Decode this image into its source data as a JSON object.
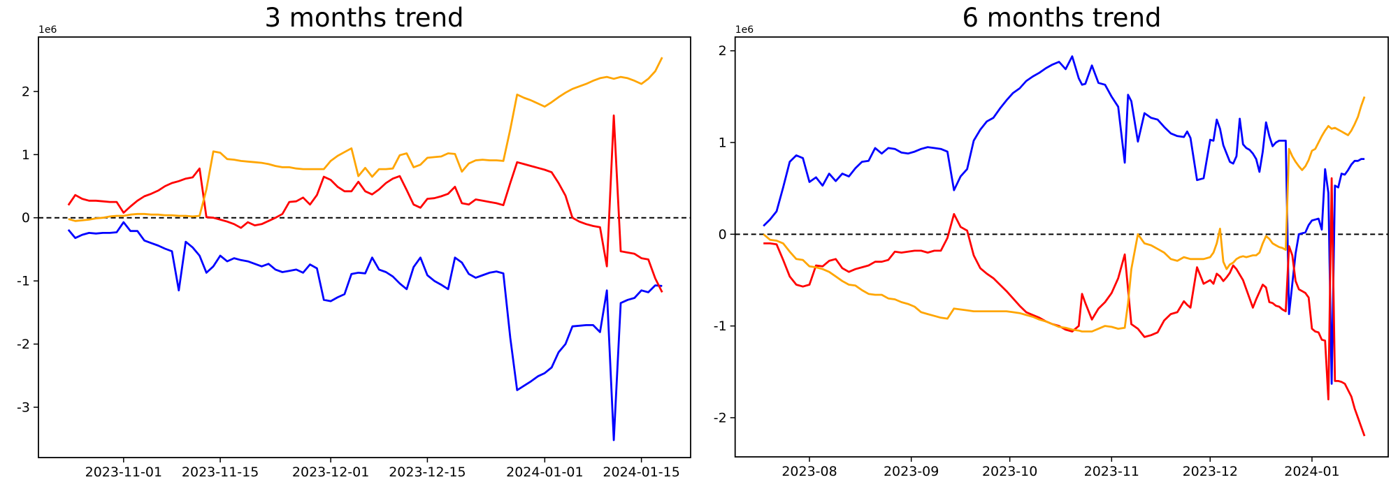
{
  "page": {
    "background": "#ffffff"
  },
  "chart_data": [
    {
      "type": "line",
      "title": "3 months trend",
      "axis_offset_label": "1e6",
      "unit_multiplier": 1000000,
      "grid": false,
      "legend": null,
      "zero_line": {
        "style": "dashed",
        "color": "#000000"
      },
      "xlim": [
        "2023-10-19T16:00:00",
        "2024-01-22T03:00:00"
      ],
      "ylim": [
        -3.797,
        2.862
      ],
      "yticks": [
        2,
        1,
        0,
        -1,
        -2,
        -3
      ],
      "xticks": [
        {
          "date": "2023-11-01",
          "label": "2023-11-01"
        },
        {
          "date": "2023-11-15",
          "label": "2023-11-15"
        },
        {
          "date": "2023-12-01",
          "label": "2023-12-01"
        },
        {
          "date": "2023-12-15",
          "label": "2023-12-15"
        },
        {
          "date": "2024-01-01",
          "label": "2024-01-01"
        },
        {
          "date": "2024-01-15",
          "label": "2024-01-15"
        }
      ],
      "x": {
        "start": "2023-10-24",
        "step_days": 1,
        "count": 87
      },
      "series": [
        {
          "name": "blue",
          "color": "#0000ff",
          "values": [
            -0.19,
            -0.32,
            -0.27,
            -0.24,
            -0.25,
            -0.24,
            -0.24,
            -0.23,
            -0.07,
            -0.21,
            -0.21,
            -0.36,
            -0.4,
            -0.44,
            -0.49,
            -0.53,
            -1.15,
            -0.38,
            -0.47,
            -0.6,
            -0.87,
            -0.77,
            -0.6,
            -0.69,
            -0.64,
            -0.67,
            -0.69,
            -0.73,
            -0.77,
            -0.73,
            -0.82,
            -0.86,
            -0.84,
            -0.82,
            -0.87,
            -0.74,
            -0.8,
            -1.3,
            -1.32,
            -1.26,
            -1.21,
            -0.89,
            -0.87,
            -0.88,
            -0.63,
            -0.82,
            -0.86,
            -0.93,
            -1.04,
            -1.13,
            -0.78,
            -0.63,
            -0.91,
            -1.0,
            -1.06,
            -1.13,
            -0.63,
            -0.71,
            -0.89,
            -0.95,
            -0.91,
            -0.87,
            -0.85,
            -0.88,
            -1.9,
            -2.73,
            -2.66,
            -2.59,
            -2.51,
            -2.46,
            -2.37,
            -2.13,
            -2.0,
            -1.72,
            -1.71,
            -1.7,
            -1.7,
            -1.81,
            -1.15,
            -3.52,
            -1.35,
            -1.3,
            -1.27,
            -1.15,
            -1.18,
            -1.07,
            -1.08
          ]
        },
        {
          "name": "red",
          "color": "#ff0000",
          "values": [
            0.2,
            0.36,
            0.3,
            0.27,
            0.27,
            0.26,
            0.25,
            0.25,
            0.08,
            0.18,
            0.27,
            0.34,
            0.38,
            0.43,
            0.5,
            0.55,
            0.58,
            0.62,
            0.64,
            0.78,
            0.01,
            0.0,
            -0.03,
            -0.06,
            -0.1,
            -0.16,
            -0.07,
            -0.12,
            -0.1,
            -0.05,
            0.0,
            0.06,
            0.25,
            0.26,
            0.32,
            0.21,
            0.36,
            0.65,
            0.6,
            0.49,
            0.42,
            0.42,
            0.57,
            0.42,
            0.37,
            0.45,
            0.55,
            0.62,
            0.66,
            0.44,
            0.21,
            0.16,
            0.3,
            0.31,
            0.34,
            0.38,
            0.49,
            0.23,
            0.21,
            0.29,
            0.27,
            0.25,
            0.23,
            0.2,
            0.55,
            0.88,
            0.85,
            0.82,
            0.79,
            0.76,
            0.72,
            0.55,
            0.35,
            0.0,
            -0.06,
            -0.1,
            -0.13,
            -0.15,
            -0.77,
            1.62,
            -0.53,
            -0.55,
            -0.57,
            -0.64,
            -0.66,
            -0.96,
            -1.18
          ]
        },
        {
          "name": "orange",
          "color": "#ffa500",
          "values": [
            -0.02,
            -0.05,
            -0.04,
            -0.03,
            -0.01,
            0.0,
            0.02,
            0.03,
            0.03,
            0.05,
            0.06,
            0.06,
            0.05,
            0.05,
            0.04,
            0.04,
            0.03,
            0.03,
            0.02,
            0.03,
            0.45,
            1.05,
            1.03,
            0.93,
            0.92,
            0.9,
            0.89,
            0.88,
            0.87,
            0.85,
            0.82,
            0.8,
            0.8,
            0.78,
            0.77,
            0.77,
            0.77,
            0.77,
            0.9,
            0.98,
            1.04,
            1.1,
            0.66,
            0.79,
            0.65,
            0.77,
            0.77,
            0.78,
            0.99,
            1.02,
            0.8,
            0.84,
            0.95,
            0.96,
            0.97,
            1.02,
            1.01,
            0.73,
            0.86,
            0.91,
            0.92,
            0.91,
            0.91,
            0.9,
            1.4,
            1.95,
            1.9,
            1.86,
            1.81,
            1.76,
            1.83,
            1.91,
            1.98,
            2.04,
            2.08,
            2.12,
            2.17,
            2.21,
            2.23,
            2.2,
            2.23,
            2.21,
            2.17,
            2.12,
            2.2,
            2.32,
            2.54
          ]
        }
      ]
    },
    {
      "type": "line",
      "title": "6 months trend",
      "axis_offset_label": "1e6",
      "unit_multiplier": 1000000,
      "grid": false,
      "legend": null,
      "zero_line": {
        "style": "dashed",
        "color": "#000000"
      },
      "xlim": [
        "2023-07-09T09:00:00",
        "2024-01-24T05:00:00"
      ],
      "ylim": [
        -2.427,
        2.15
      ],
      "yticks": [
        2,
        1,
        0,
        -1,
        -2
      ],
      "xticks": [
        {
          "date": "2023-08-01",
          "label": "2023-08"
        },
        {
          "date": "2023-09-01",
          "label": "2023-09"
        },
        {
          "date": "2023-10-01",
          "label": "2023-10"
        },
        {
          "date": "2023-11-01",
          "label": "2023-11"
        },
        {
          "date": "2023-12-01",
          "label": "2023-12"
        },
        {
          "date": "2024-01-01",
          "label": "2024-01"
        }
      ],
      "x": {
        "dates": [
          "2023-07-18",
          "2023-07-20",
          "2023-07-22",
          "2023-07-24",
          "2023-07-26",
          "2023-07-28",
          "2023-07-30",
          "2023-08-01",
          "2023-08-03",
          "2023-08-05",
          "2023-08-07",
          "2023-08-09",
          "2023-08-11",
          "2023-08-13",
          "2023-08-15",
          "2023-08-17",
          "2023-08-19",
          "2023-08-21",
          "2023-08-23",
          "2023-08-25",
          "2023-08-27",
          "2023-08-29",
          "2023-08-31",
          "2023-09-02",
          "2023-09-04",
          "2023-09-06",
          "2023-09-08",
          "2023-09-10",
          "2023-09-12",
          "2023-09-14",
          "2023-09-16",
          "2023-09-18",
          "2023-09-20",
          "2023-09-22",
          "2023-09-24",
          "2023-09-26",
          "2023-09-28",
          "2023-09-30",
          "2023-10-02",
          "2023-10-04",
          "2023-10-06",
          "2023-10-08",
          "2023-10-10",
          "2023-10-12",
          "2023-10-14",
          "2023-10-16",
          "2023-10-18",
          "2023-10-20",
          "2023-10-22",
          "2023-10-23",
          "2023-10-24",
          "2023-10-26",
          "2023-10-28",
          "2023-10-30",
          "2023-11-01",
          "2023-11-03",
          "2023-11-05",
          "2023-11-06",
          "2023-11-07",
          "2023-11-09",
          "2023-11-11",
          "2023-11-13",
          "2023-11-15",
          "2023-11-17",
          "2023-11-19",
          "2023-11-21",
          "2023-11-23",
          "2023-11-24",
          "2023-11-25",
          "2023-11-27",
          "2023-11-29",
          "2023-12-01",
          "2023-12-02",
          "2023-12-03",
          "2023-12-04",
          "2023-12-05",
          "2023-12-06",
          "2023-12-07",
          "2023-12-08",
          "2023-12-09",
          "2023-12-10",
          "2023-12-11",
          "2023-12-12",
          "2023-12-13",
          "2023-12-14",
          "2023-12-15",
          "2023-12-16",
          "2023-12-17",
          "2023-12-18",
          "2023-12-19",
          "2023-12-20",
          "2023-12-21",
          "2023-12-22",
          "2023-12-23",
          "2023-12-24",
          "2023-12-25",
          "2023-12-26",
          "2023-12-27",
          "2023-12-28",
          "2023-12-29",
          "2023-12-30",
          "2023-12-31",
          "2024-01-01",
          "2024-01-02",
          "2024-01-03",
          "2024-01-04",
          "2024-01-05",
          "2024-01-06",
          "2024-01-07",
          "2024-01-08",
          "2024-01-09",
          "2024-01-10",
          "2024-01-11",
          "2024-01-12",
          "2024-01-13",
          "2024-01-14",
          "2024-01-15",
          "2024-01-16",
          "2024-01-17"
        ]
      },
      "series": [
        {
          "name": "blue",
          "color": "#0000ff",
          "values": [
            0.09,
            0.16,
            0.25,
            0.51,
            0.79,
            0.86,
            0.83,
            0.57,
            0.62,
            0.53,
            0.66,
            0.58,
            0.66,
            0.63,
            0.72,
            0.79,
            0.8,
            0.94,
            0.88,
            0.94,
            0.93,
            0.89,
            0.88,
            0.9,
            0.93,
            0.95,
            0.94,
            0.93,
            0.9,
            0.48,
            0.63,
            0.71,
            1.02,
            1.14,
            1.23,
            1.27,
            1.37,
            1.46,
            1.54,
            1.59,
            1.67,
            1.72,
            1.76,
            1.81,
            1.85,
            1.88,
            1.8,
            1.94,
            1.7,
            1.63,
            1.64,
            1.84,
            1.65,
            1.63,
            1.5,
            1.39,
            0.78,
            1.52,
            1.45,
            1.01,
            1.32,
            1.27,
            1.25,
            1.17,
            1.1,
            1.07,
            1.06,
            1.12,
            1.05,
            0.59,
            0.61,
            1.03,
            1.02,
            1.25,
            1.15,
            0.97,
            0.88,
            0.79,
            0.77,
            0.85,
            1.26,
            0.98,
            0.94,
            0.92,
            0.88,
            0.82,
            0.68,
            0.9,
            1.22,
            1.07,
            0.96,
            1.0,
            1.02,
            1.02,
            1.02,
            -0.87,
            -0.54,
            -0.21,
            0.0,
            0.01,
            0.02,
            0.1,
            0.15,
            0.16,
            0.17,
            0.05,
            0.71,
            0.45,
            -1.63,
            0.53,
            0.51,
            0.66,
            0.65,
            0.7,
            0.76,
            0.8,
            0.8,
            0.82,
            0.82
          ]
        },
        {
          "name": "red",
          "color": "#ff0000",
          "values": [
            -0.1,
            -0.1,
            -0.11,
            -0.28,
            -0.46,
            -0.55,
            -0.57,
            -0.55,
            -0.34,
            -0.35,
            -0.29,
            -0.27,
            -0.37,
            -0.41,
            -0.38,
            -0.36,
            -0.34,
            -0.3,
            -0.3,
            -0.28,
            -0.19,
            -0.2,
            -0.19,
            -0.18,
            -0.18,
            -0.2,
            -0.18,
            -0.18,
            -0.04,
            0.22,
            0.08,
            0.04,
            -0.23,
            -0.37,
            -0.43,
            -0.48,
            -0.55,
            -0.62,
            -0.7,
            -0.78,
            -0.85,
            -0.88,
            -0.91,
            -0.95,
            -0.98,
            -1.0,
            -1.04,
            -1.06,
            -1.0,
            -0.65,
            -0.75,
            -0.93,
            -0.81,
            -0.74,
            -0.64,
            -0.48,
            -0.22,
            -0.6,
            -0.98,
            -1.03,
            -1.12,
            -1.1,
            -1.07,
            -0.94,
            -0.87,
            -0.85,
            -0.73,
            -0.77,
            -0.8,
            -0.36,
            -0.54,
            -0.5,
            -0.54,
            -0.43,
            -0.46,
            -0.51,
            -0.47,
            -0.42,
            -0.34,
            -0.38,
            -0.44,
            -0.5,
            -0.6,
            -0.7,
            -0.8,
            -0.71,
            -0.63,
            -0.55,
            -0.58,
            -0.74,
            -0.75,
            -0.78,
            -0.79,
            -0.82,
            -0.84,
            -0.13,
            -0.23,
            -0.51,
            -0.6,
            -0.62,
            -0.64,
            -0.69,
            -1.03,
            -1.06,
            -1.07,
            -1.15,
            -1.16,
            -1.8,
            0.61,
            -1.6,
            -1.6,
            -1.61,
            -1.63,
            -1.7,
            -1.77,
            -1.9,
            -2.0,
            -2.1,
            -2.2
          ]
        },
        {
          "name": "orange",
          "color": "#ffa500",
          "values": [
            0.0,
            -0.06,
            -0.07,
            -0.1,
            -0.19,
            -0.27,
            -0.28,
            -0.35,
            -0.36,
            -0.38,
            -0.41,
            -0.46,
            -0.51,
            -0.55,
            -0.56,
            -0.61,
            -0.65,
            -0.66,
            -0.66,
            -0.7,
            -0.71,
            -0.74,
            -0.76,
            -0.79,
            -0.85,
            -0.87,
            -0.89,
            -0.91,
            -0.92,
            -0.81,
            -0.82,
            -0.83,
            -0.84,
            -0.84,
            -0.84,
            -0.84,
            -0.84,
            -0.84,
            -0.85,
            -0.86,
            -0.88,
            -0.9,
            -0.93,
            -0.95,
            -0.98,
            -1.01,
            -1.02,
            -1.04,
            -1.05,
            -1.06,
            -1.06,
            -1.06,
            -1.03,
            -1.0,
            -1.01,
            -1.03,
            -1.02,
            -0.75,
            -0.38,
            0.0,
            -0.1,
            -0.12,
            -0.16,
            -0.2,
            -0.27,
            -0.29,
            -0.25,
            -0.26,
            -0.27,
            -0.27,
            -0.27,
            -0.25,
            -0.2,
            -0.1,
            0.06,
            -0.3,
            -0.38,
            -0.33,
            -0.31,
            -0.27,
            -0.25,
            -0.24,
            -0.25,
            -0.24,
            -0.23,
            -0.23,
            -0.2,
            -0.1,
            -0.02,
            -0.05,
            -0.1,
            -0.12,
            -0.14,
            -0.15,
            -0.17,
            0.93,
            0.85,
            0.79,
            0.74,
            0.7,
            0.74,
            0.81,
            0.91,
            0.93,
            1.0,
            1.07,
            1.13,
            1.18,
            1.15,
            1.16,
            1.14,
            1.12,
            1.1,
            1.08,
            1.13,
            1.2,
            1.28,
            1.4,
            1.5
          ]
        }
      ]
    }
  ]
}
